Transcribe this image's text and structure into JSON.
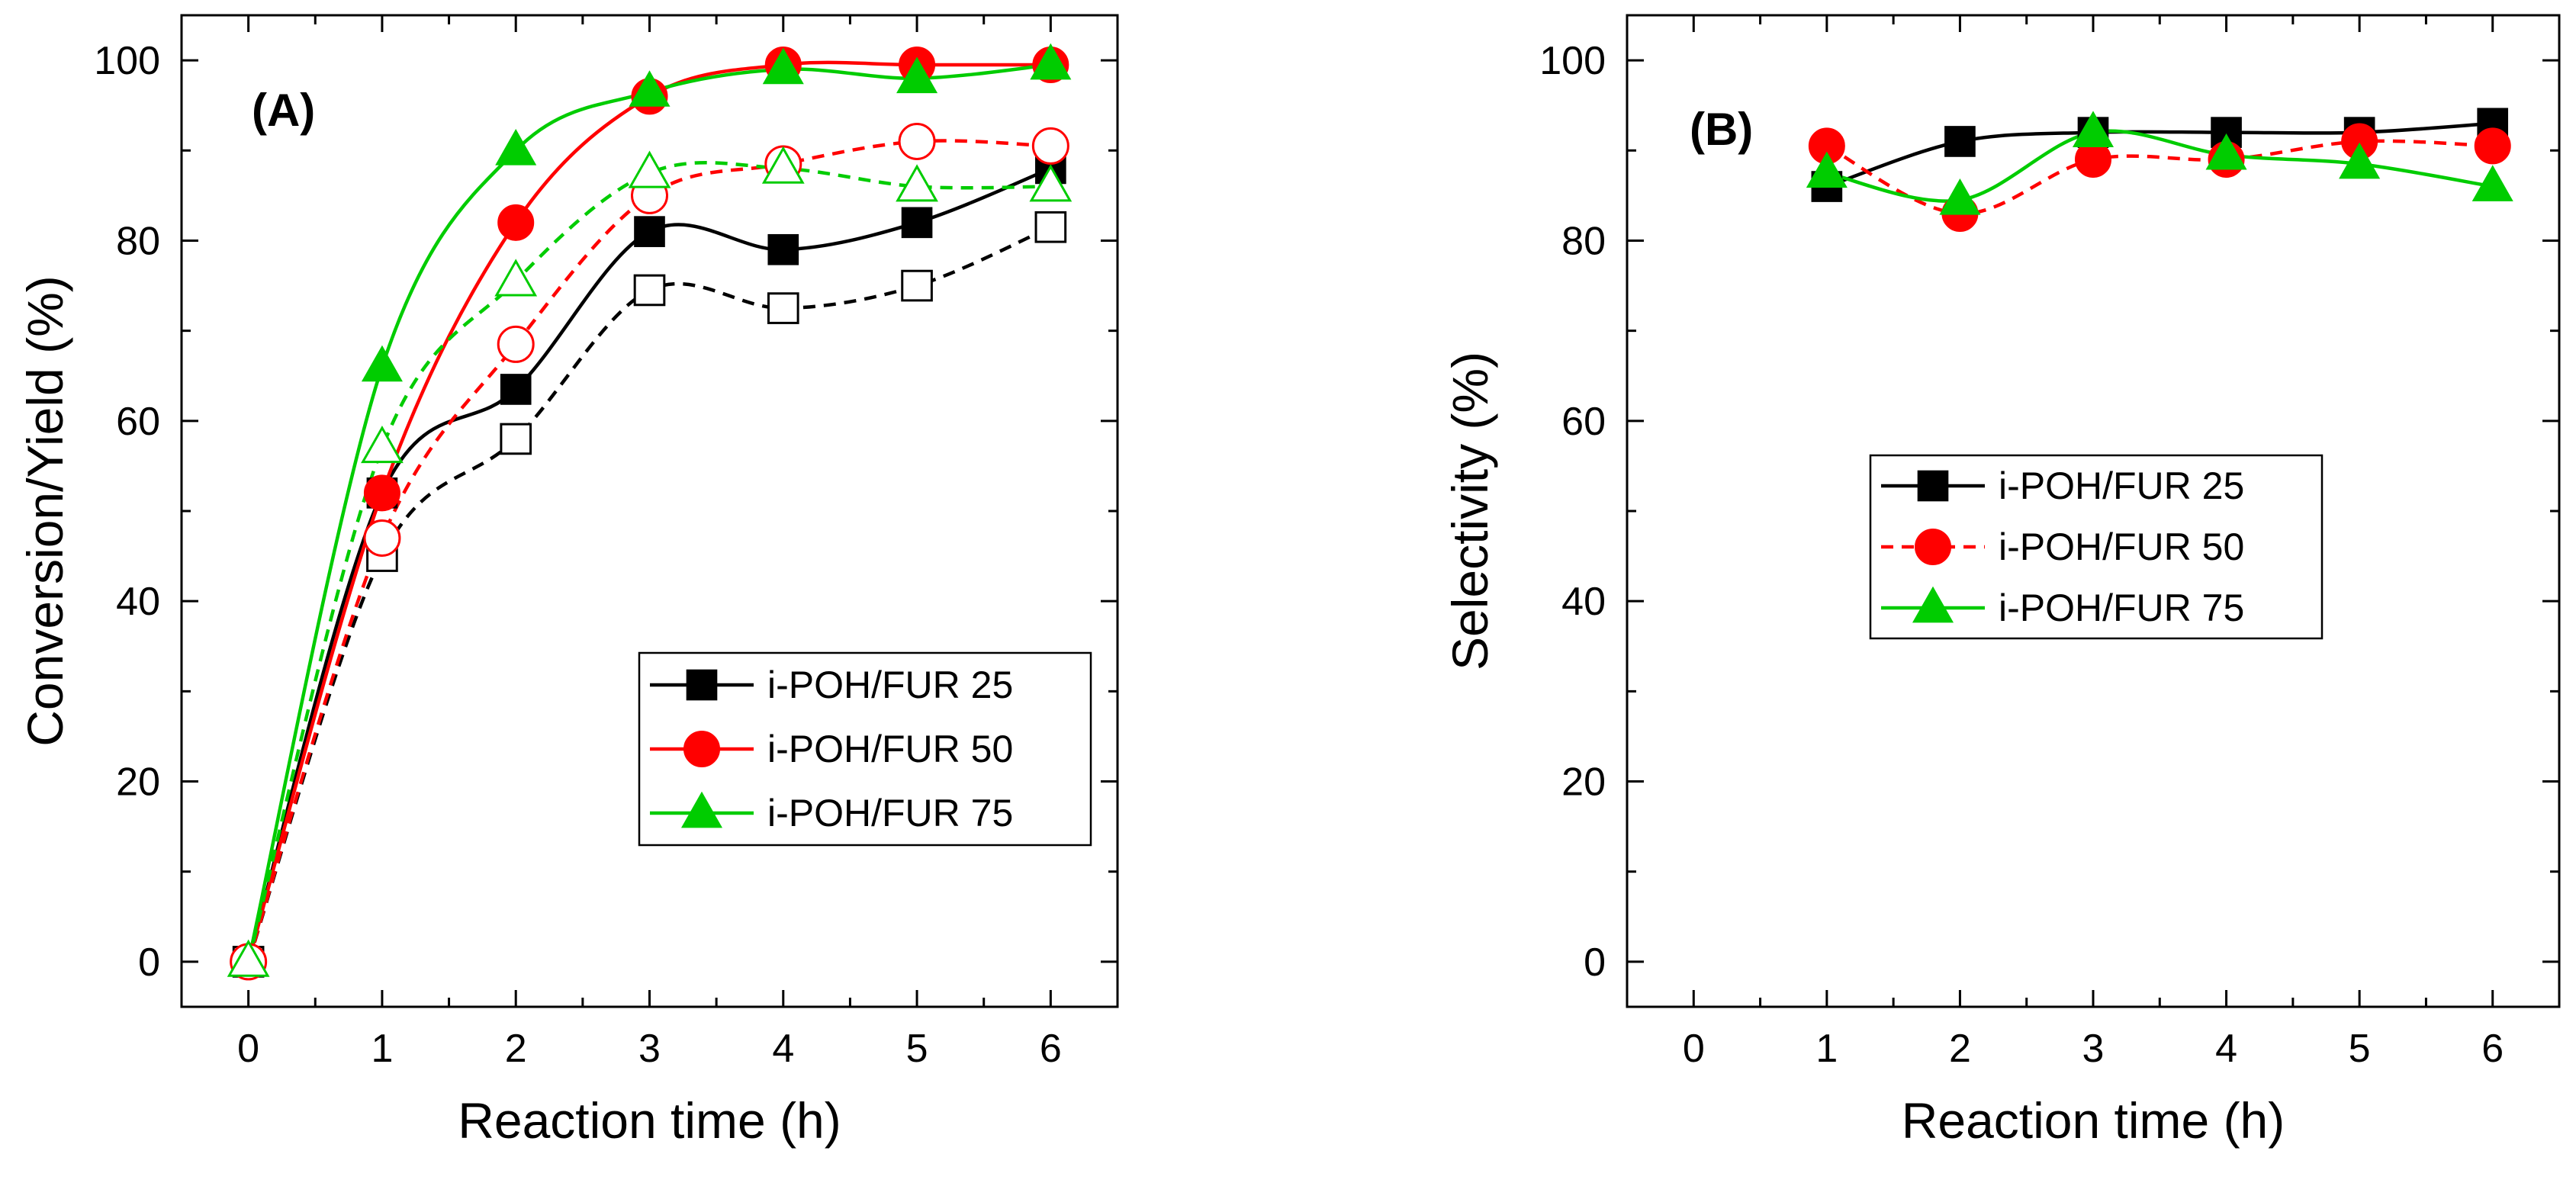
{
  "chart_data": [
    {
      "type": "line",
      "panel_label": "(A)",
      "xlabel": "Reaction time (h)",
      "ylabel": "Conversion/Yield (%)",
      "xlim": [
        -0.5,
        6.5
      ],
      "ylim": [
        -5,
        105
      ],
      "x_ticks": [
        "0",
        "1",
        "2",
        "3",
        "4",
        "5",
        "6"
      ],
      "y_ticks": [
        "0",
        "20",
        "40",
        "60",
        "80",
        "100"
      ],
      "legend_position": "bottom-right",
      "series": [
        {
          "name": "i-POH/FUR 25",
          "kind": "conversion",
          "marker": "square",
          "filled": true,
          "line": "solid",
          "color": "#000000",
          "x": [
            0,
            1,
            2,
            3,
            4,
            5,
            6
          ],
          "values": [
            0,
            52,
            63.5,
            81,
            79,
            82,
            88
          ]
        },
        {
          "name": "i-POH/FUR 50",
          "kind": "conversion",
          "marker": "circle",
          "filled": true,
          "line": "solid",
          "color": "#ff0000",
          "x": [
            0,
            1,
            2,
            3,
            4,
            5,
            6
          ],
          "values": [
            0,
            52,
            82,
            96,
            99.5,
            99.5,
            99.5
          ]
        },
        {
          "name": "i-POH/FUR 75",
          "kind": "conversion",
          "marker": "triangle",
          "filled": true,
          "line": "solid",
          "color": "#00cc00",
          "x": [
            0,
            1,
            2,
            3,
            4,
            5,
            6
          ],
          "values": [
            0,
            66,
            90,
            96.5,
            99,
            98,
            99.5
          ]
        },
        {
          "name": "i-POH/FUR 25",
          "kind": "yield",
          "marker": "square",
          "filled": false,
          "line": "dashed",
          "color": "#000000",
          "x": [
            0,
            1,
            2,
            3,
            4,
            5,
            6
          ],
          "values": [
            0,
            45,
            58,
            74.5,
            72.5,
            75,
            81.5
          ]
        },
        {
          "name": "i-POH/FUR 50",
          "kind": "yield",
          "marker": "circle",
          "filled": false,
          "line": "dashed",
          "color": "#ff0000",
          "x": [
            0,
            1,
            2,
            3,
            4,
            5,
            6
          ],
          "values": [
            0,
            47,
            68.5,
            85,
            88.5,
            91,
            90.5
          ]
        },
        {
          "name": "i-POH/FUR 75",
          "kind": "yield",
          "marker": "triangle",
          "filled": false,
          "line": "dashed",
          "color": "#00cc00",
          "x": [
            0,
            1,
            2,
            3,
            4,
            5,
            6
          ],
          "values": [
            0,
            57,
            75.5,
            87.5,
            88,
            86,
            86
          ]
        }
      ],
      "legend": [
        {
          "label": "i-POH/FUR 25",
          "marker": "square",
          "color": "#000000",
          "line": "solid"
        },
        {
          "label": "i-POH/FUR 50",
          "marker": "circle",
          "color": "#ff0000",
          "line": "solid"
        },
        {
          "label": "i-POH/FUR 75",
          "marker": "triangle",
          "color": "#00cc00",
          "line": "solid"
        }
      ]
    },
    {
      "type": "line",
      "panel_label": "(B)",
      "xlabel": "Reaction time (h)",
      "ylabel": "Selectivity (%)",
      "xlim": [
        -0.5,
        6.5
      ],
      "ylim": [
        -5,
        105
      ],
      "x_ticks": [
        "0",
        "1",
        "2",
        "3",
        "4",
        "5",
        "6"
      ],
      "y_ticks": [
        "0",
        "20",
        "40",
        "60",
        "80",
        "100"
      ],
      "legend_position": "center",
      "series": [
        {
          "name": "i-POH/FUR 25",
          "marker": "square",
          "filled": true,
          "line": "solid",
          "color": "#000000",
          "x": [
            1,
            2,
            3,
            4,
            5,
            6
          ],
          "values": [
            86,
            91,
            92,
            92,
            92,
            93
          ]
        },
        {
          "name": "i-POH/FUR 50",
          "marker": "circle",
          "filled": true,
          "line": "dashed",
          "color": "#ff0000",
          "x": [
            1,
            2,
            3,
            4,
            5,
            6
          ],
          "values": [
            90.5,
            83,
            89,
            89,
            91,
            90.5
          ]
        },
        {
          "name": "i-POH/FUR 75",
          "marker": "triangle",
          "filled": true,
          "line": "solid",
          "color": "#00cc00",
          "x": [
            1,
            2,
            3,
            4,
            5,
            6
          ],
          "values": [
            87.5,
            84.5,
            92,
            89.5,
            88.5,
            86
          ]
        }
      ],
      "legend": [
        {
          "label": "i-POH/FUR 25",
          "marker": "square",
          "color": "#000000",
          "line": "solid"
        },
        {
          "label": "i-POH/FUR 50",
          "marker": "circle",
          "color": "#ff0000",
          "line": "dashed"
        },
        {
          "label": "i-POH/FUR 75",
          "marker": "triangle",
          "color": "#00cc00",
          "line": "solid"
        }
      ]
    }
  ]
}
